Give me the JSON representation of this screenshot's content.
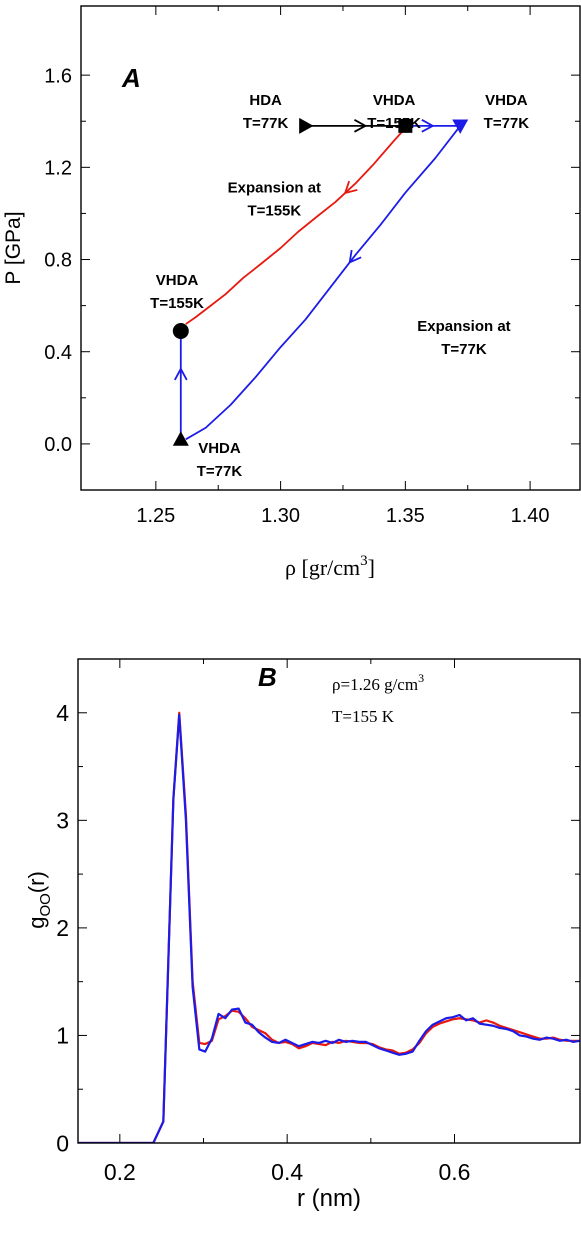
{
  "chart_data": [
    {
      "panel": "A",
      "type": "line",
      "panel_label": "A",
      "xlabel": "ρ [gr/cm",
      "xlabel_sup": "3",
      "xlabel_end": "]",
      "ylabel": "P [GPa]",
      "xlim": [
        1.22,
        1.42
      ],
      "ylim": [
        -0.2,
        1.9
      ],
      "xticks": [
        1.25,
        1.3,
        1.35,
        1.4
      ],
      "xtick_labels": [
        "1.25",
        "1.30",
        "1.35",
        "1.40"
      ],
      "yticks": [
        0.0,
        0.4,
        0.8,
        1.2,
        1.6
      ],
      "ytick_labels": [
        "0.0",
        "0.4",
        "0.8",
        "1.2",
        "1.6"
      ],
      "grid": false,
      "series": [
        {
          "color": "#000000",
          "x": [
            1.31,
            1.35
          ],
          "y": [
            1.38,
            1.38
          ],
          "arrow_at": 0.6
        },
        {
          "color": "#e8190f",
          "x": [
            1.35,
            1.345,
            1.337,
            1.33,
            1.322,
            1.315,
            1.307,
            1.3,
            1.292,
            1.285,
            1.278,
            1.272,
            1.266,
            1.262
          ],
          "y": [
            1.37,
            1.31,
            1.21,
            1.13,
            1.05,
            0.99,
            0.92,
            0.85,
            0.78,
            0.72,
            0.65,
            0.6,
            0.55,
            0.52
          ],
          "arrow_at": 0.3
        },
        {
          "color": "#1c1ce8",
          "x": [
            1.35,
            1.372
          ],
          "y": [
            1.38,
            1.38
          ],
          "arrow_at": 0.5
        },
        {
          "color": "#1c1ce8",
          "x": [
            1.372,
            1.362,
            1.35,
            1.34,
            1.33,
            1.32,
            1.31,
            1.3,
            1.29,
            1.28,
            1.27,
            1.262
          ],
          "y": [
            1.38,
            1.24,
            1.09,
            0.95,
            0.82,
            0.68,
            0.54,
            0.42,
            0.29,
            0.17,
            0.07,
            0.02
          ],
          "arrow_at": 0.42
        },
        {
          "color": "#1c1ce8",
          "x": [
            1.26,
            1.26
          ],
          "y": [
            0.02,
            0.49
          ],
          "arrow_at": 0.65
        }
      ],
      "markers": [
        {
          "shape": "triangle-right",
          "x": 1.31,
          "y": 1.38,
          "color": "#000000"
        },
        {
          "shape": "square",
          "x": 1.35,
          "y": 1.38,
          "color": "#000000"
        },
        {
          "shape": "triangle-down",
          "x": 1.372,
          "y": 1.38,
          "color": "#1c1ce8"
        },
        {
          "shape": "circle",
          "x": 1.26,
          "y": 0.49,
          "color": "#000000"
        },
        {
          "shape": "triangle-up",
          "x": 1.26,
          "y": 0.02,
          "color": "#000000"
        }
      ],
      "annotations": [
        {
          "lines": [
            "HDA",
            "T=77K"
          ],
          "x": 1.294,
          "y": 1.47
        },
        {
          "lines": [
            "VHDA",
            "T=155K"
          ],
          "x": 1.3455,
          "y": 1.47
        },
        {
          "lines": [
            "VHDA",
            "T=77K"
          ],
          "x": 1.3905,
          "y": 1.47
        },
        {
          "lines": [
            "Expansion at",
            "T=155K"
          ],
          "x": 1.2975,
          "y": 1.09
        },
        {
          "lines": [
            "VHDA",
            "T=155K"
          ],
          "x": 1.2585,
          "y": 0.69
        },
        {
          "lines": [
            "Expansion at",
            "T=77K"
          ],
          "x": 1.3735,
          "y": 0.49
        },
        {
          "lines": [
            "VHDA",
            "T=77K"
          ],
          "x": 1.2755,
          "y": -0.04
        }
      ]
    },
    {
      "panel": "B",
      "type": "line",
      "panel_label": "B",
      "xlabel": "r (nm)",
      "ylabel": "g",
      "ylabel_sub": "OO",
      "ylabel_end": "(r)",
      "xlim": [
        0.15,
        0.75
      ],
      "ylim": [
        0,
        4.5
      ],
      "xticks": [
        0.2,
        0.4,
        0.6
      ],
      "xtick_labels": [
        "0.2",
        "0.4",
        "0.6"
      ],
      "yticks": [
        0,
        1,
        2,
        3,
        4
      ],
      "ytick_labels": [
        "0",
        "1",
        "2",
        "3",
        "4"
      ],
      "grid": false,
      "annotation_line1": "ρ=1.26 g/cm",
      "annotation_sup": "3",
      "annotation_line2": "T=155 K",
      "series": [
        {
          "color": "#e8190f",
          "x": [
            0.15,
            0.18,
            0.21,
            0.24,
            0.252,
            0.258,
            0.264,
            0.271,
            0.279,
            0.287,
            0.295,
            0.302,
            0.31,
            0.318,
            0.326,
            0.334,
            0.342,
            0.35,
            0.358,
            0.366,
            0.374,
            0.382,
            0.39,
            0.398,
            0.406,
            0.414,
            0.422,
            0.43,
            0.438,
            0.446,
            0.454,
            0.462,
            0.47,
            0.478,
            0.486,
            0.494,
            0.502,
            0.51,
            0.518,
            0.526,
            0.534,
            0.542,
            0.55,
            0.558,
            0.566,
            0.574,
            0.582,
            0.59,
            0.598,
            0.606,
            0.614,
            0.622,
            0.63,
            0.638,
            0.646,
            0.654,
            0.662,
            0.67,
            0.678,
            0.686,
            0.694,
            0.702,
            0.71,
            0.718,
            0.726,
            0.734,
            0.742,
            0.75
          ],
          "y": [
            0,
            0,
            0,
            0,
            0.2,
            1.7,
            3.2,
            4.0,
            3.05,
            1.5,
            0.93,
            0.92,
            0.95,
            1.15,
            1.18,
            1.23,
            1.22,
            1.16,
            1.08,
            1.05,
            1.02,
            0.96,
            0.93,
            0.94,
            0.92,
            0.88,
            0.9,
            0.93,
            0.92,
            0.91,
            0.94,
            0.93,
            0.95,
            0.94,
            0.93,
            0.93,
            0.92,
            0.89,
            0.87,
            0.86,
            0.83,
            0.84,
            0.87,
            0.93,
            1.02,
            1.08,
            1.11,
            1.13,
            1.15,
            1.16,
            1.15,
            1.14,
            1.12,
            1.14,
            1.12,
            1.09,
            1.07,
            1.05,
            1.03,
            1.01,
            0.99,
            0.97,
            0.97,
            0.98,
            0.96,
            0.95,
            0.95,
            0.95
          ]
        },
        {
          "color": "#1c1ce8",
          "x": [
            0.15,
            0.18,
            0.21,
            0.24,
            0.252,
            0.258,
            0.264,
            0.271,
            0.279,
            0.287,
            0.295,
            0.302,
            0.31,
            0.318,
            0.326,
            0.334,
            0.342,
            0.35,
            0.358,
            0.366,
            0.374,
            0.382,
            0.39,
            0.398,
            0.406,
            0.414,
            0.422,
            0.43,
            0.438,
            0.446,
            0.454,
            0.462,
            0.47,
            0.478,
            0.486,
            0.494,
            0.502,
            0.51,
            0.518,
            0.526,
            0.534,
            0.542,
            0.55,
            0.558,
            0.566,
            0.574,
            0.582,
            0.59,
            0.598,
            0.606,
            0.614,
            0.622,
            0.63,
            0.638,
            0.646,
            0.654,
            0.662,
            0.67,
            0.678,
            0.686,
            0.694,
            0.702,
            0.71,
            0.718,
            0.726,
            0.734,
            0.742,
            0.75
          ],
          "y": [
            0,
            0,
            0,
            0,
            0.2,
            1.7,
            3.2,
            3.98,
            3.0,
            1.45,
            0.87,
            0.85,
            0.97,
            1.2,
            1.16,
            1.24,
            1.25,
            1.12,
            1.1,
            1.03,
            0.98,
            0.94,
            0.93,
            0.96,
            0.93,
            0.9,
            0.92,
            0.94,
            0.93,
            0.95,
            0.93,
            0.96,
            0.94,
            0.95,
            0.94,
            0.94,
            0.91,
            0.88,
            0.86,
            0.84,
            0.82,
            0.83,
            0.85,
            0.95,
            1.04,
            1.1,
            1.13,
            1.16,
            1.17,
            1.19,
            1.14,
            1.16,
            1.11,
            1.1,
            1.09,
            1.07,
            1.06,
            1.04,
            1.0,
            0.99,
            0.97,
            0.96,
            0.98,
            0.97,
            0.95,
            0.96,
            0.94,
            0.95
          ]
        }
      ]
    }
  ]
}
